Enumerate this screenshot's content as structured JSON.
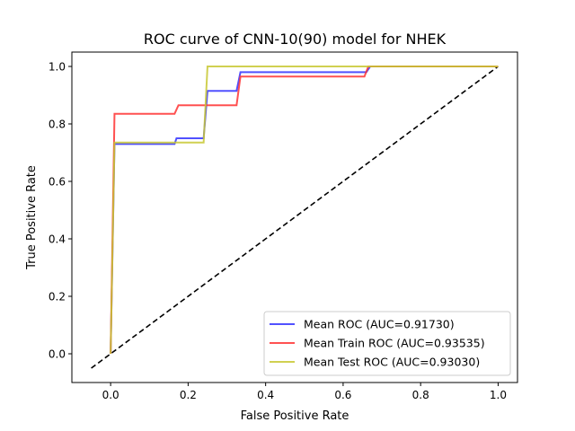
{
  "chart_data": {
    "type": "line",
    "title": "ROC curve of CNN-10(90) model for NHEK",
    "xlabel": "False Positive Rate",
    "ylabel": "True Positive Rate",
    "xlim": [
      -0.1,
      1.05
    ],
    "ylim": [
      -0.1,
      1.05
    ],
    "x_ticks": [
      "0.0",
      "0.2",
      "0.4",
      "0.6",
      "0.8",
      "1.0"
    ],
    "y_ticks": [
      "0.0",
      "0.2",
      "0.4",
      "0.6",
      "0.8",
      "1.0"
    ],
    "grid": false,
    "legend_position": "lower-right",
    "series": [
      {
        "name": "Mean ROC (AUC=0.91730)",
        "color": "#3333ff",
        "style": "solid",
        "x": [
          0.0,
          0.01,
          0.165,
          0.17,
          0.24,
          0.25,
          0.325,
          0.335,
          0.66,
          0.67,
          1.0
        ],
        "y": [
          0.0,
          0.73,
          0.73,
          0.75,
          0.75,
          0.915,
          0.915,
          0.98,
          0.98,
          1.0,
          1.0
        ]
      },
      {
        "name": "Mean Train ROC (AUC=0.93535)",
        "color": "#ff3333",
        "style": "solid",
        "x": [
          0.0,
          0.01,
          0.165,
          0.175,
          0.325,
          0.335,
          0.655,
          0.665,
          1.0
        ],
        "y": [
          0.0,
          0.835,
          0.835,
          0.865,
          0.865,
          0.965,
          0.965,
          1.0,
          1.0
        ]
      },
      {
        "name": "Mean Test ROC (AUC=0.93030)",
        "color": "#c8c832",
        "style": "solid",
        "x": [
          0.0,
          0.01,
          0.24,
          0.25,
          1.0
        ],
        "y": [
          0.0,
          0.735,
          0.735,
          1.0,
          1.0
        ]
      },
      {
        "name": "",
        "color": "#000000",
        "style": "dashed",
        "x": [
          -0.05,
          1.0
        ],
        "y": [
          -0.05,
          1.0
        ]
      }
    ]
  }
}
